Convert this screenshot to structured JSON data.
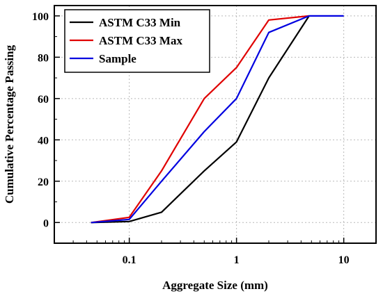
{
  "chart_data": {
    "type": "line",
    "title": "",
    "xlabel": "Aggregate Size (mm)",
    "ylabel": "Cumulative Percentage Passing",
    "xscale": "log",
    "xlim": [
      0.02,
      20
    ],
    "ylim": [
      -10,
      105
    ],
    "xticks": [
      0.1,
      1,
      10
    ],
    "xtick_labels": [
      "0.1",
      "1",
      "10"
    ],
    "yticks": [
      0,
      20,
      40,
      60,
      80,
      100
    ],
    "ytick_labels": [
      "0",
      "20",
      "40",
      "60",
      "80",
      "100"
    ],
    "grid": true,
    "legend_position": "top-left",
    "series": [
      {
        "name": "ASTM C33 Min",
        "color": "#000000",
        "x": [
          0.044,
          0.1,
          0.2,
          0.5,
          1.0,
          2.0,
          4.75
        ],
        "y": [
          0,
          0.5,
          5,
          25,
          39,
          70,
          100
        ]
      },
      {
        "name": "ASTM C33 Max",
        "color": "#e00000",
        "x": [
          0.044,
          0.1,
          0.2,
          0.5,
          1.0,
          2.0,
          4.75
        ],
        "y": [
          0,
          2.5,
          25,
          60,
          75,
          98,
          100
        ]
      },
      {
        "name": "Sample",
        "color": "#0000e0",
        "x": [
          0.044,
          0.1,
          0.2,
          0.5,
          1.0,
          2.0,
          4.75,
          10
        ],
        "y": [
          0,
          1.5,
          20,
          44,
          60,
          92,
          100,
          100
        ]
      }
    ]
  }
}
